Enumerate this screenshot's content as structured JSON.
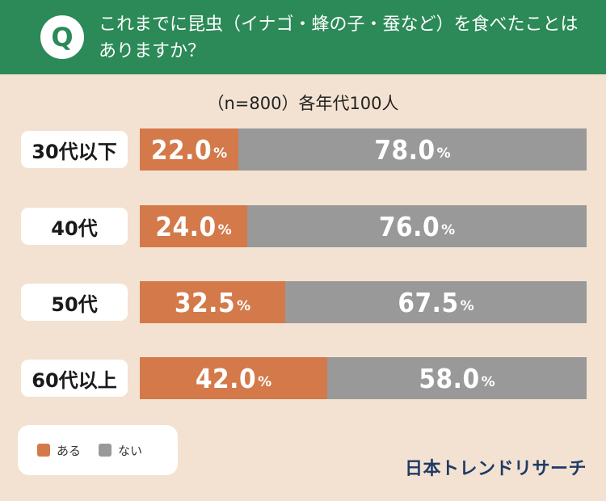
{
  "header": {
    "badge": "Q",
    "question": "これまでに昆虫（イナゴ・蜂の子・蚕など）を食べたことはありますか？"
  },
  "subtitle": "（n=800）各年代100人",
  "colors": {
    "yes": "#d4794a",
    "no": "#999999",
    "header": "#2b8a57"
  },
  "chart_data": {
    "type": "bar",
    "orientation": "horizontal-stacked-100",
    "categories": [
      "30代以下",
      "40代",
      "50代",
      "60代以上"
    ],
    "series": [
      {
        "name": "ある",
        "values": [
          22.0,
          24.0,
          32.5,
          42.0
        ]
      },
      {
        "name": "ない",
        "values": [
          78.0,
          76.0,
          67.5,
          58.0
        ]
      }
    ],
    "unit": "%",
    "xlim": [
      0,
      100
    ]
  },
  "legend": {
    "yes_label": "ある",
    "no_label": "ない"
  },
  "brand": "日本トレンドリサーチ"
}
